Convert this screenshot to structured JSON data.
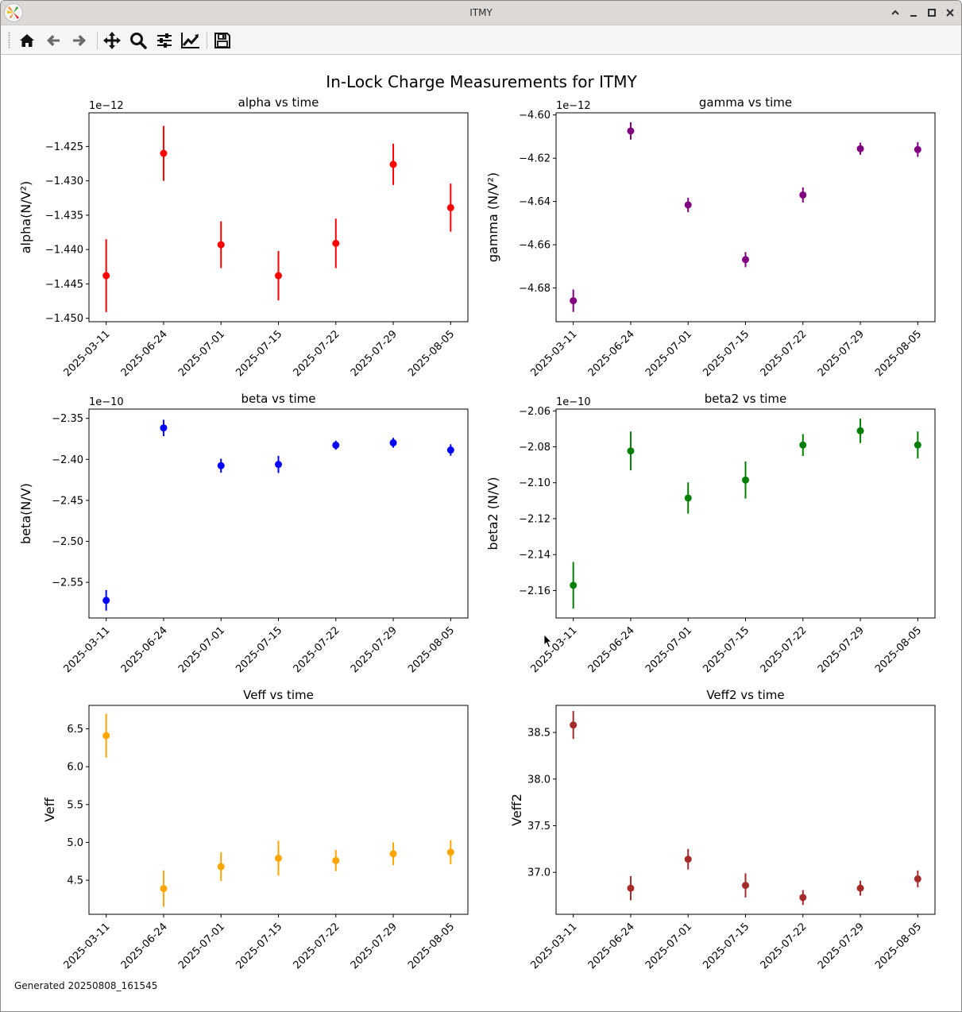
{
  "window": {
    "title": "ITMY",
    "controls": [
      "minimize-up",
      "minimize",
      "maximize",
      "close"
    ]
  },
  "toolbar": {
    "buttons": [
      {
        "name": "home",
        "icon": "home-icon",
        "tooltip": "Reset original view"
      },
      {
        "name": "back",
        "icon": "arrow-left-icon",
        "tooltip": "Back"
      },
      {
        "name": "forward",
        "icon": "arrow-right-icon",
        "tooltip": "Forward"
      },
      {
        "name": "pan",
        "icon": "move-icon",
        "tooltip": "Pan"
      },
      {
        "name": "zoom",
        "icon": "zoom-icon",
        "tooltip": "Zoom"
      },
      {
        "name": "subplots",
        "icon": "sliders-icon",
        "tooltip": "Configure subplots"
      },
      {
        "name": "axes",
        "icon": "line-chart-icon",
        "tooltip": "Edit axes"
      },
      {
        "name": "save",
        "icon": "floppy-disk-icon",
        "tooltip": "Save figure"
      }
    ]
  },
  "figure": {
    "suptitle": "In-Lock Charge Measurements for ITMY",
    "footer": "Generated 20250808_161545"
  },
  "chart_data": [
    {
      "type": "scatter",
      "id": "alpha",
      "title": "alpha vs time",
      "xlabel": "",
      "ylabel": "alpha(N/V²)",
      "offset_label": "1e−12",
      "color": "#ff0000",
      "categories": [
        "2025-03-11",
        "2025-06-24",
        "2025-07-01",
        "2025-07-15",
        "2025-07-22",
        "2025-07-29",
        "2025-08-05"
      ],
      "values": [
        -1.4438,
        -1.426,
        -1.4393,
        -1.4438,
        -1.4391,
        -1.4276,
        -1.4339
      ],
      "errors": [
        0.0053,
        0.004,
        0.0034,
        0.0036,
        0.0036,
        0.003,
        0.0035
      ],
      "yticks": [
        -1.45,
        -1.445,
        -1.44,
        -1.435,
        -1.43,
        -1.425
      ],
      "ytick_labels": [
        "−1.450",
        "−1.445",
        "−1.440",
        "−1.435",
        "−1.430",
        "−1.425"
      ],
      "ylim": [
        -1.4505,
        -1.4201
      ],
      "grid": false
    },
    {
      "type": "scatter",
      "id": "gamma",
      "title": "gamma vs time",
      "xlabel": "",
      "ylabel": "gamma (N/V²)",
      "offset_label": "1e−12",
      "color": "#800080",
      "categories": [
        "2025-03-11",
        "2025-06-24",
        "2025-07-01",
        "2025-07-15",
        "2025-07-22",
        "2025-07-29",
        "2025-08-05"
      ],
      "values": [
        -4.6859,
        -4.6074,
        -4.6416,
        -4.6669,
        -4.637,
        -4.6156,
        -4.616
      ],
      "errors": [
        0.0052,
        0.004,
        0.0033,
        0.0035,
        0.0035,
        0.0028,
        0.0034
      ],
      "yticks": [
        -4.68,
        -4.66,
        -4.64,
        -4.62,
        -4.6
      ],
      "ytick_labels": [
        "−4.68",
        "−4.66",
        "−4.64",
        "−4.62",
        "−4.60"
      ],
      "ylim": [
        -4.6956,
        -4.599
      ],
      "grid": false
    },
    {
      "type": "scatter",
      "id": "beta",
      "title": "beta vs time",
      "xlabel": "",
      "ylabel": "beta(N/V)",
      "offset_label": "1e−10",
      "color": "#0000ff",
      "categories": [
        "2025-03-11",
        "2025-06-24",
        "2025-07-01",
        "2025-07-15",
        "2025-07-22",
        "2025-07-29",
        "2025-08-05"
      ],
      "values": [
        -2.572,
        -2.3617,
        -2.4077,
        -2.4062,
        -2.3827,
        -2.3798,
        -2.3886
      ],
      "errors": [
        0.0125,
        0.01,
        0.0085,
        0.0105,
        0.0055,
        0.006,
        0.007
      ],
      "yticks": [
        -2.55,
        -2.5,
        -2.45,
        -2.4,
        -2.35
      ],
      "ytick_labels": [
        "−2.55",
        "−2.50",
        "−2.45",
        "−2.40",
        "−2.35"
      ],
      "ylim": [
        -2.5935,
        -2.3387
      ],
      "grid": false
    },
    {
      "type": "scatter",
      "id": "beta2",
      "title": "beta2 vs time",
      "xlabel": "",
      "ylabel": "beta2 (N/V)",
      "offset_label": "1e−10",
      "color": "#008000",
      "categories": [
        "2025-03-11",
        "2025-06-24",
        "2025-07-01",
        "2025-07-15",
        "2025-07-22",
        "2025-07-29",
        "2025-08-05"
      ],
      "values": [
        -2.1571,
        -2.0823,
        -2.1085,
        -2.0985,
        -2.079,
        -2.0711,
        -2.079
      ],
      "errors": [
        0.013,
        0.0108,
        0.0087,
        0.0103,
        0.0061,
        0.0068,
        0.0075
      ],
      "yticks": [
        -2.16,
        -2.14,
        -2.12,
        -2.1,
        -2.08,
        -2.06
      ],
      "ytick_labels": [
        "−2.16",
        "−2.14",
        "−2.12",
        "−2.10",
        "−2.08",
        "−2.06"
      ],
      "ylim": [
        -2.1753,
        -2.059
      ],
      "grid": false
    },
    {
      "type": "scatter",
      "id": "veff",
      "title": "Veff vs time",
      "xlabel": "",
      "ylabel": "Veff",
      "offset_label": "",
      "color": "#ffa500",
      "categories": [
        "2025-03-11",
        "2025-06-24",
        "2025-07-01",
        "2025-07-15",
        "2025-07-22",
        "2025-07-29",
        "2025-08-05"
      ],
      "values": [
        6.41,
        4.39,
        4.68,
        4.79,
        4.76,
        4.85,
        4.87
      ],
      "errors": [
        0.29,
        0.24,
        0.19,
        0.23,
        0.14,
        0.15,
        0.16
      ],
      "yticks": [
        4.5,
        5.0,
        5.5,
        6.0,
        6.5
      ],
      "ytick_labels": [
        "4.5",
        "5.0",
        "5.5",
        "6.0",
        "6.5"
      ],
      "ylim": [
        4.05,
        6.81
      ],
      "grid": false
    },
    {
      "type": "scatter",
      "id": "veff2",
      "title": "Veff2 vs time",
      "xlabel": "",
      "ylabel": "Veff2",
      "offset_label": "",
      "color": "#a52a2a",
      "categories": [
        "2025-03-11",
        "2025-06-24",
        "2025-07-01",
        "2025-07-15",
        "2025-07-22",
        "2025-07-29",
        "2025-08-05"
      ],
      "values": [
        38.58,
        36.83,
        37.14,
        36.86,
        36.73,
        36.83,
        36.93
      ],
      "errors": [
        0.15,
        0.13,
        0.11,
        0.13,
        0.08,
        0.08,
        0.09
      ],
      "yticks": [
        37.0,
        37.5,
        38.0,
        38.5
      ],
      "ytick_labels": [
        "37.0",
        "37.5",
        "38.0",
        "38.5"
      ],
      "ylim": [
        36.55,
        38.79
      ],
      "grid": false
    }
  ]
}
